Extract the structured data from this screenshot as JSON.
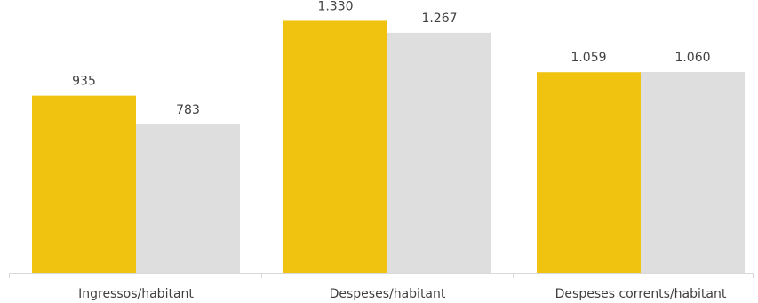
{
  "chart_data": {
    "type": "bar",
    "categories": [
      "Ingressos/habitant",
      "Despeses/habitant",
      "Despeses corrents/habitant"
    ],
    "series": [
      {
        "values": [
          935,
          1330,
          1059
        ],
        "labels": [
          "935",
          "1.330",
          "1.059"
        ],
        "color": "#EFC30F"
      },
      {
        "values": [
          783,
          1267,
          1060
        ],
        "labels": [
          "783",
          "1.267",
          "1.060"
        ],
        "color": "#DEDEDE"
      }
    ],
    "title": "",
    "xlabel": "",
    "ylabel": "",
    "ylim": [
      0,
      1440
    ],
    "grid": false,
    "legend": "none",
    "axis_color": "#D9D9D9"
  }
}
